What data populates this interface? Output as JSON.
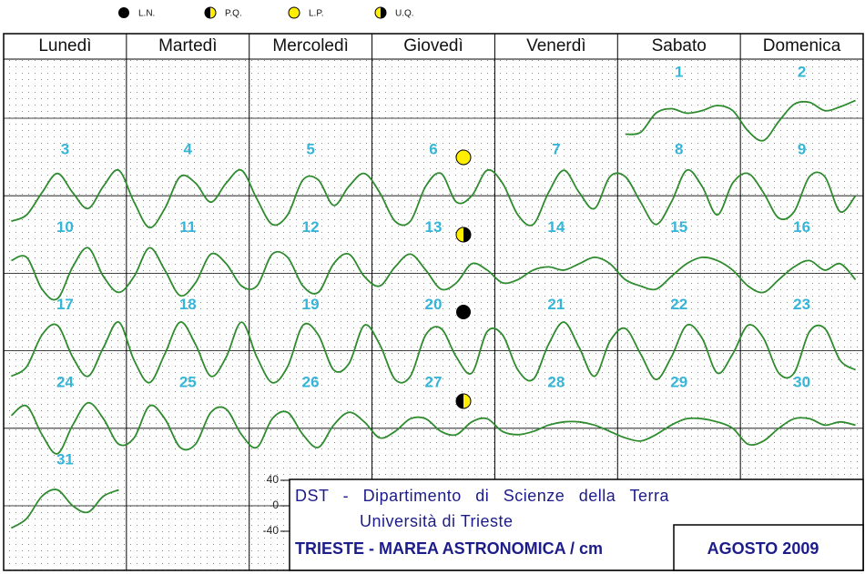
{
  "legend": [
    "L.N.",
    "P.Q.",
    "L.P.",
    "U.Q."
  ],
  "weekdays": [
    "Lunedì",
    "Martedì",
    "Mercoledì",
    "Giovedì",
    "Venerdì",
    "Sabato",
    "Domenica"
  ],
  "days": [
    {
      "label": "1",
      "tide": [
        -25,
        -22,
        8,
        15,
        8,
        12,
        20,
        12
      ]
    },
    {
      "label": "2",
      "tide": [
        -20,
        -35,
        -5,
        22,
        25,
        12,
        18,
        28
      ]
    },
    {
      "label": "3",
      "tide": [
        -40,
        -30,
        5,
        35,
        5,
        -20,
        15,
        40
      ]
    },
    {
      "label": "4",
      "tide": [
        -10,
        -50,
        -20,
        30,
        20,
        -10,
        20,
        40
      ]
    },
    {
      "label": "5",
      "tide": [
        -5,
        -45,
        -30,
        25,
        25,
        -15,
        15,
        35
      ]
    },
    {
      "label": "6",
      "tide": [
        5,
        -40,
        -40,
        15,
        35,
        -10,
        0,
        40
      ]
    },
    {
      "label": "7",
      "tide": [
        20,
        -30,
        -45,
        5,
        40,
        5,
        -20,
        30
      ]
    },
    {
      "label": "8",
      "tide": [
        30,
        -10,
        -45,
        -10,
        40,
        15,
        -30,
        20
      ]
    },
    {
      "label": "9",
      "tide": [
        35,
        5,
        -35,
        -25,
        30,
        30,
        -25,
        0
      ]
    },
    {
      "label": "10",
      "tide": [
        20,
        25,
        -25,
        -40,
        10,
        40,
        -5,
        -30
      ]
    },
    {
      "label": "11",
      "tide": [
        -5,
        40,
        5,
        -35,
        -15,
        30,
        15,
        -20
      ]
    },
    {
      "label": "12",
      "tide": [
        -20,
        30,
        25,
        -20,
        -30,
        15,
        30,
        -5
      ]
    },
    {
      "label": "13",
      "tide": [
        -20,
        10,
        30,
        5,
        -25,
        -15,
        15,
        5
      ]
    },
    {
      "label": "14",
      "tide": [
        -15,
        -10,
        5,
        10,
        5,
        15,
        25,
        15
      ]
    },
    {
      "label": "15",
      "tide": [
        -10,
        -20,
        -25,
        -5,
        15,
        25,
        20,
        5
      ]
    },
    {
      "label": "16",
      "tide": [
        -20,
        -30,
        -10,
        10,
        20,
        5,
        15,
        -10
      ]
    },
    {
      "label": "17",
      "tide": [
        -40,
        -25,
        25,
        40,
        -10,
        -40,
        5,
        45
      ]
    },
    {
      "label": "18",
      "tide": [
        -15,
        -50,
        -5,
        45,
        10,
        -40,
        -10,
        45
      ]
    },
    {
      "label": "19",
      "tide": [
        -10,
        -50,
        -25,
        40,
        25,
        -30,
        -20,
        40
      ]
    },
    {
      "label": "20",
      "tide": [
        10,
        -45,
        -40,
        25,
        35,
        -10,
        -35,
        30
      ]
    },
    {
      "label": "21",
      "tide": [
        25,
        -30,
        -45,
        10,
        45,
        5,
        -40,
        15
      ]
    },
    {
      "label": "22",
      "tide": [
        35,
        -5,
        -45,
        -10,
        40,
        20,
        -35,
        -5
      ]
    },
    {
      "label": "23",
      "tide": [
        40,
        20,
        -35,
        -35,
        30,
        35,
        -15,
        -30
      ]
    },
    {
      "label": "24",
      "tide": [
        20,
        35,
        -10,
        -40,
        5,
        40,
        15,
        -25
      ]
    },
    {
      "label": "25",
      "tide": [
        -15,
        35,
        15,
        -30,
        -25,
        25,
        30,
        -10
      ]
    },
    {
      "label": "26",
      "tide": [
        -30,
        15,
        25,
        -10,
        -30,
        5,
        25,
        10
      ]
    },
    {
      "label": "27",
      "tide": [
        -15,
        -5,
        15,
        15,
        -5,
        -10,
        10,
        15
      ]
    },
    {
      "label": "28",
      "tide": [
        -5,
        -10,
        -5,
        5,
        10,
        10,
        5,
        -5
      ]
    },
    {
      "label": "29",
      "tide": [
        -15,
        -20,
        -10,
        5,
        15,
        15,
        10,
        0
      ]
    },
    {
      "label": "30",
      "tide": [
        -25,
        -20,
        0,
        15,
        15,
        5,
        10,
        5
      ]
    },
    {
      "label": "31",
      "tide": [
        -35,
        -20,
        15,
        25,
        0,
        -10,
        15,
        25
      ]
    }
  ],
  "scale": {
    "ticks": [
      40,
      0,
      -40
    ]
  },
  "footer": {
    "institution": "DST - Dipartimento di Scienze della Terra",
    "university": "Università di Trieste",
    "title": "TRIESTE - MAREA ASTRONOMICA / cm",
    "month": "AGOSTO 2009"
  }
}
